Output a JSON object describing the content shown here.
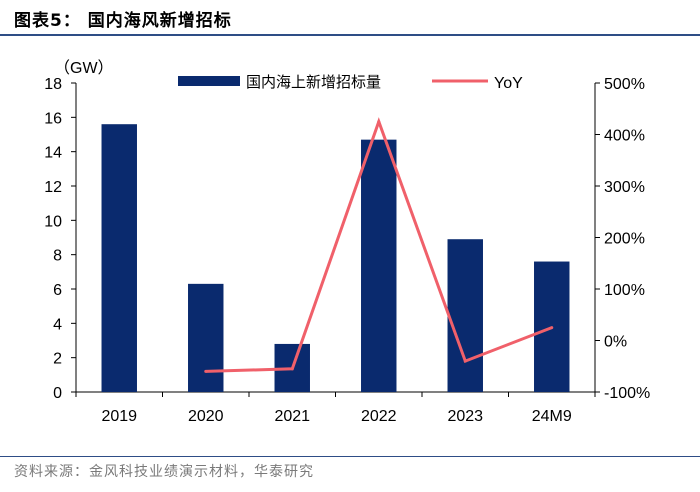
{
  "figure": {
    "title": "图表5：  国内海风新增招标",
    "source": "资料来源：金风科技业绩演示材料，华泰研究"
  },
  "colors": {
    "bar": "#0a2a6e",
    "line": "#f0606a",
    "rule": "#2e4d86",
    "axis": "#000000"
  },
  "chart_data": {
    "type": "bar",
    "categories": [
      "2019",
      "2020",
      "2021",
      "2022",
      "2023",
      "24M9"
    ],
    "series": [
      {
        "name": "国内海上新增招标量",
        "type": "bar",
        "axis": "left",
        "values": [
          15.6,
          6.3,
          2.8,
          14.7,
          8.9,
          7.6
        ]
      },
      {
        "name": "YoY",
        "type": "line",
        "axis": "right",
        "values": [
          null,
          -60,
          -55,
          425,
          -40,
          25
        ]
      }
    ],
    "unit_label": "（GW）",
    "y_left": {
      "lim": [
        0,
        18
      ],
      "ticks": [
        "0",
        "2",
        "4",
        "6",
        "8",
        "10",
        "12",
        "14",
        "16",
        "18"
      ]
    },
    "y_right": {
      "lim": [
        -100,
        500
      ],
      "ticks": [
        "-100%",
        "0%",
        "100%",
        "200%",
        "300%",
        "400%",
        "500%"
      ]
    },
    "legend": {
      "position": "top"
    }
  }
}
